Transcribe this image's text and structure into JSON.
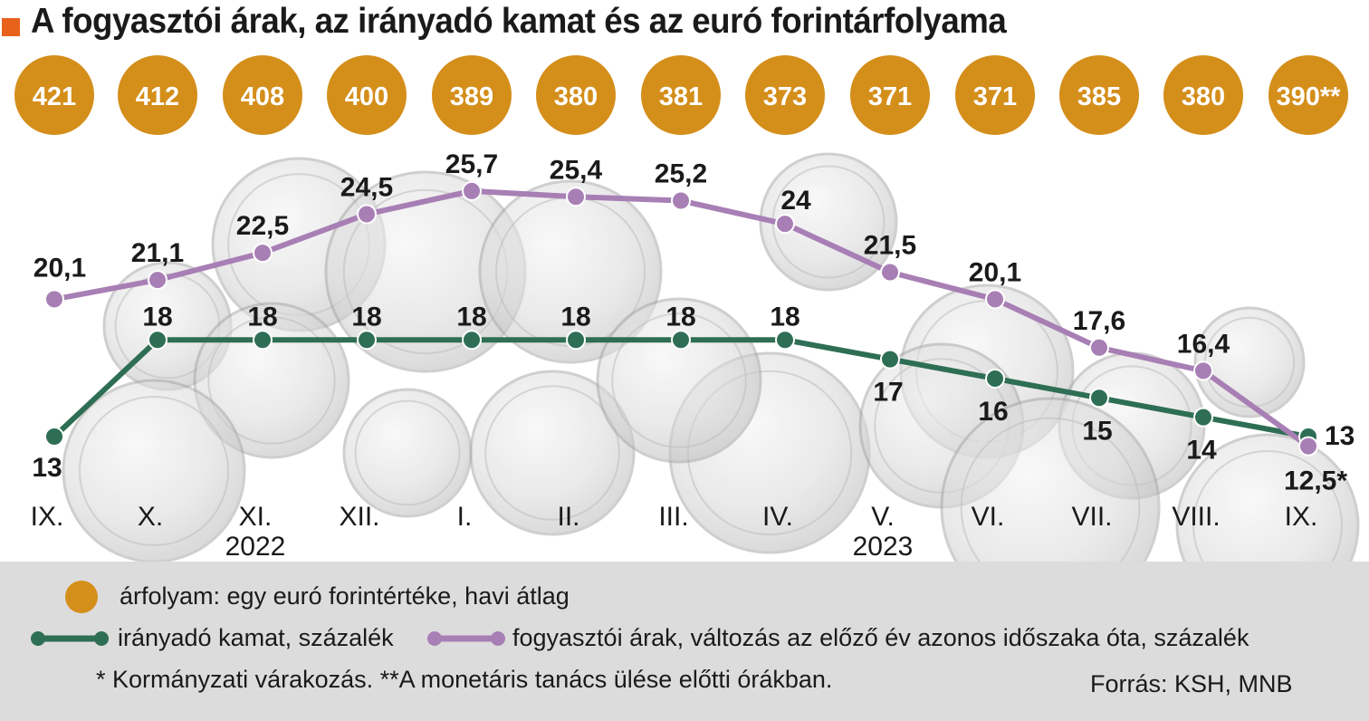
{
  "title": "A fogyasztói árak, az irányadó kamat és az euró forintárfolyama",
  "chart_data": {
    "type": "line",
    "categories": [
      "IX.",
      "X.",
      "XI.",
      "XII.",
      "I.",
      "II.",
      "III.",
      "IV.",
      "V.",
      "VI.",
      "VII.",
      "VIII.",
      "IX."
    ],
    "year_labels": [
      {
        "category_index": 2,
        "label": "2022"
      },
      {
        "category_index": 8,
        "label": "2023"
      }
    ],
    "exchange_rate": {
      "name": "árfolyam: egy euró forintértéke, havi átlag",
      "values": [
        421,
        412,
        408,
        400,
        389,
        380,
        381,
        373,
        371,
        371,
        385,
        380,
        390
      ],
      "labels": [
        "421",
        "412",
        "408",
        "400",
        "389",
        "380",
        "381",
        "373",
        "371",
        "371",
        "385",
        "380",
        "390**"
      ],
      "color": "#d48e1a"
    },
    "series": [
      {
        "name": "irányadó kamat, százalék",
        "values": [
          13,
          18,
          18,
          18,
          18,
          18,
          18,
          18,
          17,
          16,
          15,
          14,
          13
        ],
        "labels": [
          "13",
          "18",
          "18",
          "18",
          "18",
          "18",
          "18",
          "18",
          "17",
          "16",
          "15",
          "14",
          "13"
        ],
        "color": "#2e6e55"
      },
      {
        "name": "fogyasztói árak, változás az előző év azonos időszaka óta, százalék",
        "values": [
          20.1,
          21.1,
          22.5,
          24.5,
          25.7,
          25.4,
          25.2,
          24,
          21.5,
          20.1,
          17.6,
          16.4,
          12.5
        ],
        "labels": [
          "20,1",
          "21,1",
          "22,5",
          "24,5",
          "25,7",
          "25,4",
          "25,2",
          "24",
          "21,5",
          "20,1",
          "17,6",
          "16,4",
          "12,5*"
        ],
        "color": "#a87fb5"
      }
    ],
    "grid": false
  },
  "legend": {
    "exchange_rate_label": "árfolyam: egy euró forintértéke, havi átlag",
    "rate_label": "irányadó kamat, százalék",
    "cpi_label": "fogyasztói árak, változás az előző év azonos időszaka óta, százalék"
  },
  "footnote": "* Kormányzati várakozás. **A monetáris tanács ülése előtti órákban.",
  "source": "Forrás: KSH, MNB"
}
